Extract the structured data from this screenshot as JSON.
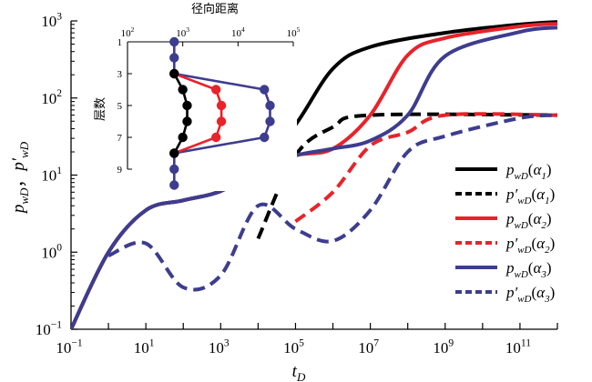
{
  "chart_data": [
    {
      "type": "line",
      "title": "",
      "xlabel": "t_D",
      "ylabel": "p_wD , p'_wD",
      "x_scale": "log",
      "y_scale": "log",
      "xlim": [
        0.1,
        1000000000000.0
      ],
      "ylim": [
        0.1,
        1000
      ],
      "x_tick_labels": [
        {
          "x": 0.1,
          "base": "10",
          "exp": "−1"
        },
        {
          "x": 10,
          "base": "10",
          "exp": "1"
        },
        {
          "x": 1000,
          "base": "10",
          "exp": "3"
        },
        {
          "x": 100000,
          "base": "10",
          "exp": "5"
        },
        {
          "x": 10000000,
          "base": "10",
          "exp": "7"
        },
        {
          "x": 1000000000,
          "base": "10",
          "exp": "9"
        },
        {
          "x": 100000000000,
          "base": "10",
          "exp": "11"
        }
      ],
      "y_tick_labels": [
        {
          "y": 0.1,
          "base": "10",
          "exp": "−1"
        },
        {
          "y": 1,
          "base": "10",
          "exp": "0"
        },
        {
          "y": 10,
          "base": "10",
          "exp": "1"
        },
        {
          "y": 100,
          "base": "10",
          "exp": "2"
        },
        {
          "y": 1000,
          "base": "10",
          "exp": "3"
        }
      ],
      "legend_position": "right",
      "series": [
        {
          "name": "p_wD(α1)",
          "color": "#000000",
          "style": "solid",
          "points": [
            [
              0.1,
              0.1
            ],
            [
              1,
              1
            ],
            [
              10,
              3.5
            ],
            [
              100,
              4.7
            ],
            [
              1000,
              6.2
            ],
            [
              10000,
              12
            ],
            [
              100000,
              45
            ],
            [
              1000000,
              240
            ],
            [
              10000000,
              460
            ],
            [
              1000000000,
              700
            ],
            [
              100000000000.0,
              900
            ],
            [
              1000000000000.0,
              970
            ]
          ]
        },
        {
          "name": "p'_wD(α1)",
          "color": "#000000",
          "style": "dashed",
          "points": [
            [
              10000,
              1.5
            ],
            [
              100000,
              18
            ],
            [
              1000000,
              42
            ],
            [
              10000000,
              60
            ],
            [
              1000000000000.0,
              60
            ]
          ]
        },
        {
          "name": "p_wD(α2)",
          "color": "#e8232a",
          "style": "solid",
          "points": [
            [
              0.1,
              0.1
            ],
            [
              1,
              1
            ],
            [
              10,
              3.5
            ],
            [
              100,
              4.7
            ],
            [
              1000,
              6.2
            ],
            [
              10000,
              12
            ],
            [
              100000,
              18
            ],
            [
              1000000,
              22
            ],
            [
              10000000,
              60
            ],
            [
              100000000,
              360
            ],
            [
              1000000000,
              600
            ],
            [
              100000000000.0,
              850
            ],
            [
              1000000000000.0,
              920
            ]
          ]
        },
        {
          "name": "p'_wD(α2)",
          "color": "#e8232a",
          "style": "dashed",
          "points": [
            [
              100000,
              2.5
            ],
            [
              1000000,
              6
            ],
            [
              10000000,
              24
            ],
            [
              100000000,
              36
            ],
            [
              1000000000,
              60
            ],
            [
              1000000000000.0,
              60
            ]
          ]
        },
        {
          "name": "p_wD(α3)",
          "color": "#3d3d8f",
          "style": "solid",
          "points": [
            [
              0.1,
              0.1
            ],
            [
              1,
              1
            ],
            [
              10,
              3.5
            ],
            [
              100,
              4.7
            ],
            [
              1000,
              6.2
            ],
            [
              10000,
              12
            ],
            [
              100000,
              18
            ],
            [
              1000000,
              22
            ],
            [
              10000000,
              28
            ],
            [
              100000000,
              60
            ],
            [
              1000000000,
              350
            ],
            [
              100000000000.0,
              720
            ],
            [
              1000000000000.0,
              820
            ]
          ]
        },
        {
          "name": "p'_wD(α3)",
          "color": "#3d3d8f",
          "style": "dashed",
          "points": [
            [
              1,
              0.9
            ],
            [
              10,
              1.3
            ],
            [
              100,
              0.35
            ],
            [
              1000,
              0.5
            ],
            [
              10000,
              4
            ],
            [
              100000,
              2
            ],
            [
              1000000,
              1.4
            ],
            [
              10000000,
              3.5
            ],
            [
              100000000,
              20
            ],
            [
              1000000000,
              32
            ],
            [
              100000000000.0,
              55
            ],
            [
              1000000000000.0,
              60
            ]
          ]
        }
      ]
    },
    {
      "type": "line",
      "title": "",
      "xlabel": "径向距离",
      "ylabel": "层数",
      "x_scale": "log",
      "xlim": [
        100,
        100000
      ],
      "ylim": [
        1,
        9
      ],
      "y_reversed": true,
      "x_tick_labels": [
        {
          "x": 100,
          "base": "10",
          "exp": "2"
        },
        {
          "x": 1000,
          "base": "10",
          "exp": "3"
        },
        {
          "x": 10000,
          "base": "10",
          "exp": "4"
        },
        {
          "x": 100000,
          "base": "10",
          "exp": "5"
        }
      ],
      "y_tick_labels": [
        {
          "y": 1,
          "label": "1"
        },
        {
          "y": 3,
          "label": "3"
        },
        {
          "y": 5,
          "label": "5"
        },
        {
          "y": 7,
          "label": "7"
        },
        {
          "y": 9,
          "label": "9"
        }
      ],
      "series": [
        {
          "name": "α3",
          "color": "#3d3d8f",
          "points": [
            [
              700,
              1
            ],
            [
              700,
              2
            ],
            [
              700,
              3
            ],
            [
              30000,
              4
            ],
            [
              38000,
              5
            ],
            [
              38000,
              6
            ],
            [
              30000,
              7
            ],
            [
              700,
              8
            ],
            [
              700,
              9
            ],
            [
              700,
              10
            ]
          ]
        },
        {
          "name": "α2",
          "color": "#e8232a",
          "points": [
            [
              700,
              3
            ],
            [
              4000,
              4
            ],
            [
              5000,
              5
            ],
            [
              5000,
              6
            ],
            [
              4000,
              7
            ],
            [
              700,
              8
            ]
          ]
        },
        {
          "name": "α1",
          "color": "#000000",
          "points": [
            [
              700,
              3
            ],
            [
              1000,
              4
            ],
            [
              1200,
              5
            ],
            [
              1200,
              6
            ],
            [
              1000,
              7
            ],
            [
              700,
              8
            ]
          ]
        }
      ]
    }
  ],
  "legend": [
    {
      "base": "p",
      "prime": "",
      "sub": "wD",
      "arg": "α",
      "argsub": "1",
      "color": "#000000",
      "style": "solid"
    },
    {
      "base": "p",
      "prime": "′",
      "sub": "wD",
      "arg": "α",
      "argsub": "1",
      "color": "#000000",
      "style": "dashed"
    },
    {
      "base": "p",
      "prime": "",
      "sub": "wD",
      "arg": "α",
      "argsub": "2",
      "color": "#e8232a",
      "style": "solid"
    },
    {
      "base": "p",
      "prime": "′",
      "sub": "wD",
      "arg": "α",
      "argsub": "2",
      "color": "#e8232a",
      "style": "dashed"
    },
    {
      "base": "p",
      "prime": "",
      "sub": "wD",
      "arg": "α",
      "argsub": "3",
      "color": "#3d3d8f",
      "style": "solid"
    },
    {
      "base": "p",
      "prime": "′",
      "sub": "wD",
      "arg": "α",
      "argsub": "3",
      "color": "#3d3d8f",
      "style": "dashed"
    }
  ],
  "main_labels": {
    "x_base": "t",
    "x_sub": "D",
    "y_a": "p",
    "y_a_sub": "wD",
    "y_sep": "，",
    "y_b": "p′",
    "y_b_sub": "wD"
  },
  "inset_labels": {
    "title": "径向距离",
    "ylabel": "层数"
  }
}
